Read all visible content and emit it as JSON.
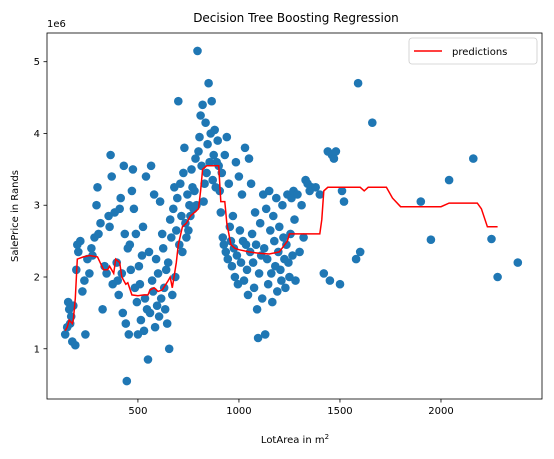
{
  "chart_data": {
    "type": "scatter",
    "title": "Decision Tree Boosting Regression",
    "xlabel_text": "LotArea in m",
    "xlabel_sup": "2",
    "ylabel": "SalePrice in Rands",
    "y_offset_label": "1e6",
    "xlim": [
      50,
      2500
    ],
    "ylim": [
      0.3,
      5.4
    ],
    "x_ticks": [
      500,
      1000,
      1500,
      2000
    ],
    "x_tick_labels": [
      "500",
      "1000",
      "1500",
      "2000"
    ],
    "y_ticks": [
      1,
      2,
      3,
      4,
      5
    ],
    "y_tick_labels": [
      "1",
      "2",
      "3",
      "4",
      "5"
    ],
    "legend": {
      "entries": [
        "predictions"
      ],
      "placement": "top-right"
    },
    "colors": {
      "scatter": "#1f77b4",
      "predictions": "#ff0000"
    },
    "grid": false,
    "series": [
      {
        "kind": "scatter",
        "points": [
          [
            140,
            1.2
          ],
          [
            150,
            1.3
          ],
          [
            155,
            1.65
          ],
          [
            160,
            1.55
          ],
          [
            165,
            1.35
          ],
          [
            170,
            1.45
          ],
          [
            175,
            1.1
          ],
          [
            180,
            1.6
          ],
          [
            190,
            1.05
          ],
          [
            195,
            2.1
          ],
          [
            200,
            2.45
          ],
          [
            205,
            2.35
          ],
          [
            215,
            2.5
          ],
          [
            225,
            1.8
          ],
          [
            235,
            1.95
          ],
          [
            240,
            1.2
          ],
          [
            250,
            2.25
          ],
          [
            260,
            2.05
          ],
          [
            270,
            2.4
          ],
          [
            275,
            2.3
          ],
          [
            285,
            2.55
          ],
          [
            295,
            3.0
          ],
          [
            300,
            3.25
          ],
          [
            305,
            2.6
          ],
          [
            315,
            2.75
          ],
          [
            325,
            1.55
          ],
          [
            335,
            2.15
          ],
          [
            345,
            2.05
          ],
          [
            355,
            2.85
          ],
          [
            360,
            2.7
          ],
          [
            365,
            3.7
          ],
          [
            370,
            3.4
          ],
          [
            375,
            1.9
          ],
          [
            385,
            2.9
          ],
          [
            395,
            2.2
          ],
          [
            400,
            1.95
          ],
          [
            405,
            1.75
          ],
          [
            410,
            2.95
          ],
          [
            415,
            3.1
          ],
          [
            420,
            2.05
          ],
          [
            425,
            1.5
          ],
          [
            430,
            3.55
          ],
          [
            435,
            2.6
          ],
          [
            440,
            1.35
          ],
          [
            445,
            0.55
          ],
          [
            450,
            2.4
          ],
          [
            455,
            1.2
          ],
          [
            460,
            2.45
          ],
          [
            465,
            2.1
          ],
          [
            470,
            3.2
          ],
          [
            475,
            3.5
          ],
          [
            480,
            2.95
          ],
          [
            485,
            1.85
          ],
          [
            490,
            2.6
          ],
          [
            495,
            1.65
          ],
          [
            500,
            1.2
          ],
          [
            505,
            2.15
          ],
          [
            510,
            1.9
          ],
          [
            515,
            1.4
          ],
          [
            520,
            2.3
          ],
          [
            525,
            2.7
          ],
          [
            530,
            1.25
          ],
          [
            535,
            1.7
          ],
          [
            540,
            3.4
          ],
          [
            545,
            1.55
          ],
          [
            550,
            0.85
          ],
          [
            555,
            2.35
          ],
          [
            560,
            1.5
          ],
          [
            565,
            3.55
          ],
          [
            570,
            1.95
          ],
          [
            575,
            1.8
          ],
          [
            580,
            3.15
          ],
          [
            585,
            1.3
          ],
          [
            590,
            2.25
          ],
          [
            595,
            1.6
          ],
          [
            600,
            2.05
          ],
          [
            605,
            1.45
          ],
          [
            610,
            3.05
          ],
          [
            615,
            1.7
          ],
          [
            620,
            2.6
          ],
          [
            625,
            2.4
          ],
          [
            630,
            1.85
          ],
          [
            635,
            1.55
          ],
          [
            640,
            2.1
          ],
          [
            645,
            1.35
          ],
          [
            650,
            2.2
          ],
          [
            655,
            1.0
          ],
          [
            660,
            2.8
          ],
          [
            665,
            2.55
          ],
          [
            670,
            1.75
          ],
          [
            675,
            2.95
          ],
          [
            680,
            3.25
          ],
          [
            685,
            2.0
          ],
          [
            690,
            2.65
          ],
          [
            695,
            3.1
          ],
          [
            700,
            4.45
          ],
          [
            705,
            2.45
          ],
          [
            710,
            3.3
          ],
          [
            715,
            2.85
          ],
          [
            720,
            2.35
          ],
          [
            725,
            3.45
          ],
          [
            730,
            3.8
          ],
          [
            735,
            2.75
          ],
          [
            740,
            2.55
          ],
          [
            745,
            3.15
          ],
          [
            750,
            2.65
          ],
          [
            755,
            3.0
          ],
          [
            760,
            2.85
          ],
          [
            765,
            3.5
          ],
          [
            770,
            3.25
          ],
          [
            775,
            2.95
          ],
          [
            780,
            3.2
          ],
          [
            785,
            3.65
          ],
          [
            790,
            3.0
          ],
          [
            795,
            5.15
          ],
          [
            800,
            3.75
          ],
          [
            805,
            3.95
          ],
          [
            810,
            4.25
          ],
          [
            815,
            3.55
          ],
          [
            820,
            4.4
          ],
          [
            825,
            3.05
          ],
          [
            830,
            3.3
          ],
          [
            835,
            4.15
          ],
          [
            840,
            3.45
          ],
          [
            845,
            3.85
          ],
          [
            850,
            4.7
          ],
          [
            855,
            3.6
          ],
          [
            860,
            4.0
          ],
          [
            865,
            4.45
          ],
          [
            870,
            3.35
          ],
          [
            875,
            3.7
          ],
          [
            880,
            4.05
          ],
          [
            885,
            3.25
          ],
          [
            890,
            3.6
          ],
          [
            895,
            3.9
          ],
          [
            900,
            3.55
          ],
          [
            905,
            3.2
          ],
          [
            910,
            2.9
          ],
          [
            915,
            3.45
          ],
          [
            920,
            2.55
          ],
          [
            925,
            2.45
          ],
          [
            930,
            3.7
          ],
          [
            935,
            2.35
          ],
          [
            940,
            3.95
          ],
          [
            945,
            2.25
          ],
          [
            950,
            3.3
          ],
          [
            955,
            2.7
          ],
          [
            960,
            2.5
          ],
          [
            965,
            2.15
          ],
          [
            970,
            2.85
          ],
          [
            975,
            2.4
          ],
          [
            980,
            2.0
          ],
          [
            985,
            3.6
          ],
          [
            990,
            2.3
          ],
          [
            995,
            1.9
          ],
          [
            1000,
            3.4
          ],
          [
            1005,
            2.65
          ],
          [
            1010,
            2.2
          ],
          [
            1015,
            3.15
          ],
          [
            1020,
            2.5
          ],
          [
            1025,
            1.95
          ],
          [
            1030,
            3.8
          ],
          [
            1035,
            2.45
          ],
          [
            1040,
            2.1
          ],
          [
            1045,
            1.75
          ],
          [
            1050,
            3.65
          ],
          [
            1055,
            2.35
          ],
          [
            1060,
            3.3
          ],
          [
            1065,
            2.6
          ],
          [
            1070,
            2.2
          ],
          [
            1075,
            1.85
          ],
          [
            1080,
            2.9
          ],
          [
            1085,
            2.45
          ],
          [
            1090,
            1.55
          ],
          [
            1095,
            1.15
          ],
          [
            1100,
            2.05
          ],
          [
            1105,
            2.75
          ],
          [
            1110,
            2.3
          ],
          [
            1115,
            1.7
          ],
          [
            1120,
            3.15
          ],
          [
            1125,
            2.4
          ],
          [
            1130,
            1.2
          ],
          [
            1135,
            2.95
          ],
          [
            1140,
            2.25
          ],
          [
            1145,
            1.9
          ],
          [
            1150,
            3.2
          ],
          [
            1155,
            2.65
          ],
          [
            1160,
            2.05
          ],
          [
            1165,
            1.65
          ],
          [
            1170,
            2.85
          ],
          [
            1175,
            2.5
          ],
          [
            1180,
            2.15
          ],
          [
            1185,
            3.1
          ],
          [
            1190,
            1.8
          ],
          [
            1195,
            2.35
          ],
          [
            1200,
            2.7
          ],
          [
            1205,
            2.1
          ],
          [
            1210,
            1.95
          ],
          [
            1215,
            3.0
          ],
          [
            1220,
            2.55
          ],
          [
            1225,
            2.25
          ],
          [
            1230,
            1.85
          ],
          [
            1235,
            2.45
          ],
          [
            1240,
            3.15
          ],
          [
            1245,
            2.2
          ],
          [
            1250,
            2.0
          ],
          [
            1255,
            2.6
          ],
          [
            1260,
            3.1
          ],
          [
            1265,
            2.3
          ],
          [
            1270,
            3.2
          ],
          [
            1275,
            2.8
          ],
          [
            1280,
            1.95
          ],
          [
            1290,
            3.15
          ],
          [
            1300,
            2.35
          ],
          [
            1310,
            3.0
          ],
          [
            1320,
            2.55
          ],
          [
            1330,
            3.35
          ],
          [
            1340,
            3.3
          ],
          [
            1350,
            3.2
          ],
          [
            1360,
            3.25
          ],
          [
            1380,
            3.25
          ],
          [
            1400,
            3.15
          ],
          [
            1420,
            2.05
          ],
          [
            1440,
            3.75
          ],
          [
            1450,
            1.95
          ],
          [
            1460,
            3.7
          ],
          [
            1470,
            3.65
          ],
          [
            1480,
            3.75
          ],
          [
            1500,
            1.9
          ],
          [
            1510,
            3.2
          ],
          [
            1520,
            3.05
          ],
          [
            1580,
            2.25
          ],
          [
            1590,
            4.7
          ],
          [
            1600,
            2.35
          ],
          [
            1660,
            4.15
          ],
          [
            1900,
            3.05
          ],
          [
            1950,
            2.52
          ],
          [
            2040,
            3.35
          ],
          [
            2160,
            3.65
          ],
          [
            2250,
            2.53
          ],
          [
            2280,
            2.0
          ],
          [
            2380,
            2.2
          ]
        ]
      },
      {
        "kind": "line",
        "name": "predictions",
        "points": [
          [
            140,
            1.25
          ],
          [
            150,
            1.3
          ],
          [
            160,
            1.4
          ],
          [
            175,
            1.35
          ],
          [
            180,
            1.4
          ],
          [
            190,
            1.7
          ],
          [
            200,
            2.25
          ],
          [
            230,
            2.28
          ],
          [
            260,
            2.3
          ],
          [
            300,
            2.28
          ],
          [
            330,
            2.1
          ],
          [
            350,
            2.1
          ],
          [
            360,
            2.15
          ],
          [
            380,
            2.05
          ],
          [
            390,
            2.25
          ],
          [
            410,
            2.2
          ],
          [
            420,
            2.0
          ],
          [
            440,
            1.9
          ],
          [
            450,
            1.92
          ],
          [
            470,
            1.75
          ],
          [
            500,
            1.74
          ],
          [
            530,
            1.75
          ],
          [
            550,
            1.75
          ],
          [
            560,
            1.82
          ],
          [
            580,
            1.85
          ],
          [
            600,
            1.8
          ],
          [
            620,
            1.82
          ],
          [
            650,
            1.95
          ],
          [
            660,
            2.0
          ],
          [
            670,
            1.85
          ],
          [
            690,
            2.2
          ],
          [
            700,
            2.45
          ],
          [
            720,
            2.7
          ],
          [
            740,
            2.75
          ],
          [
            760,
            2.85
          ],
          [
            780,
            2.9
          ],
          [
            800,
            2.95
          ],
          [
            810,
            3.2
          ],
          [
            820,
            3.5
          ],
          [
            840,
            3.55
          ],
          [
            870,
            3.55
          ],
          [
            900,
            3.55
          ],
          [
            910,
            3.05
          ],
          [
            930,
            3.05
          ],
          [
            940,
            2.75
          ],
          [
            960,
            2.45
          ],
          [
            980,
            2.4
          ],
          [
            1000,
            2.38
          ],
          [
            1050,
            2.35
          ],
          [
            1100,
            2.33
          ],
          [
            1150,
            2.32
          ],
          [
            1200,
            2.35
          ],
          [
            1240,
            2.5
          ],
          [
            1250,
            2.6
          ],
          [
            1300,
            2.6
          ],
          [
            1400,
            2.6
          ],
          [
            1410,
            2.8
          ],
          [
            1420,
            3.2
          ],
          [
            1440,
            3.25
          ],
          [
            1500,
            3.25
          ],
          [
            1600,
            3.25
          ],
          [
            1620,
            3.2
          ],
          [
            1640,
            3.25
          ],
          [
            1700,
            3.25
          ],
          [
            1730,
            3.25
          ],
          [
            1760,
            3.1
          ],
          [
            1800,
            2.98
          ],
          [
            1900,
            2.98
          ],
          [
            2000,
            2.98
          ],
          [
            2040,
            3.03
          ],
          [
            2100,
            3.03
          ],
          [
            2180,
            3.03
          ],
          [
            2200,
            2.95
          ],
          [
            2230,
            2.7
          ],
          [
            2260,
            2.7
          ],
          [
            2280,
            2.7
          ]
        ]
      }
    ]
  }
}
